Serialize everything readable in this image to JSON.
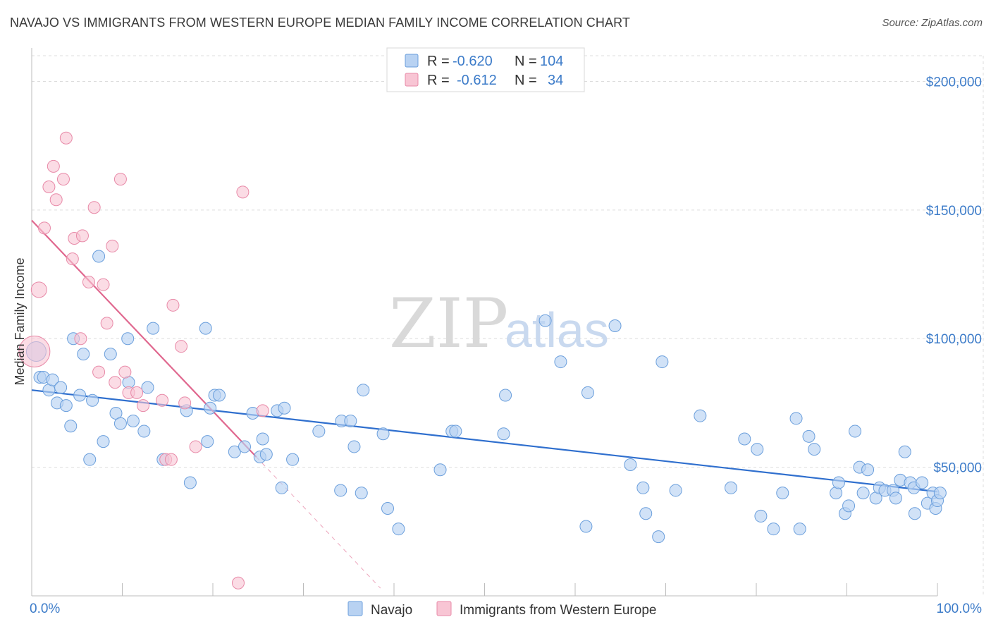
{
  "header": {
    "title": "NAVAJO VS IMMIGRANTS FROM WESTERN EUROPE MEDIAN FAMILY INCOME CORRELATION CHART",
    "source": "Source: ZipAtlas.com"
  },
  "watermark": {
    "zip": "ZIP",
    "atlas": "atlas"
  },
  "legend": {
    "navajo": {
      "r_label": "R =",
      "r_value": "-0.620",
      "n_label": "N =",
      "n_value": "104"
    },
    "immigrants": {
      "r_label": "R =",
      "r_value": "-0.612",
      "n_label": "N =",
      "n_value": "34"
    }
  },
  "colors": {
    "navajo_fill": "#b8d2f2",
    "navajo_stroke": "#6b9fdc",
    "navajo_line": "#2f6fce",
    "imm_fill": "#f8c5d4",
    "imm_stroke": "#e88aa8",
    "imm_line": "#e0688f",
    "axis_text": "#3d7cc9",
    "grid": "#dddddd"
  },
  "chart_data": {
    "type": "scatter",
    "title": "NAVAJO VS IMMIGRANTS FROM WESTERN EUROPE MEDIAN FAMILY INCOME CORRELATION CHART",
    "xlabel": "",
    "ylabel": "Median Family Income",
    "xlim": [
      0,
      100
    ],
    "ylim": [
      0,
      210000
    ],
    "x_tick_labels": [
      "0.0%",
      "100.0%"
    ],
    "y_ticks": [
      50000,
      100000,
      150000,
      200000
    ],
    "y_tick_labels": [
      "$50,000",
      "$100,000",
      "$150,000",
      "$200,000"
    ],
    "grid": true,
    "legend_position": "top-center",
    "series": [
      {
        "name": "Navajo",
        "r": -0.62,
        "n": 104,
        "trend": {
          "x": [
            0,
            100
          ],
          "y": [
            80000,
            40500
          ]
        },
        "points": [
          [
            0.5,
            95000
          ],
          [
            0.9,
            85000
          ],
          [
            1.3,
            85000
          ],
          [
            1.9,
            80000
          ],
          [
            2.3,
            84000
          ],
          [
            2.8,
            75000
          ],
          [
            3.2,
            81000
          ],
          [
            3.8,
            74000
          ],
          [
            4.3,
            66000
          ],
          [
            4.6,
            100000
          ],
          [
            5.3,
            78000
          ],
          [
            5.7,
            94000
          ],
          [
            6.4,
            53000
          ],
          [
            6.7,
            76000
          ],
          [
            7.4,
            132000
          ],
          [
            7.9,
            60000
          ],
          [
            8.7,
            94000
          ],
          [
            9.3,
            71000
          ],
          [
            9.8,
            67000
          ],
          [
            10.6,
            100000
          ],
          [
            10.7,
            83000
          ],
          [
            11.2,
            68000
          ],
          [
            12.4,
            64000
          ],
          [
            12.8,
            81000
          ],
          [
            13.4,
            104000
          ],
          [
            14.5,
            53000
          ],
          [
            17.1,
            72000
          ],
          [
            17.5,
            44000
          ],
          [
            19.2,
            104000
          ],
          [
            19.4,
            60000
          ],
          [
            19.7,
            73000
          ],
          [
            20.2,
            78000
          ],
          [
            20.7,
            78000
          ],
          [
            22.4,
            56000
          ],
          [
            23.5,
            58000
          ],
          [
            24.4,
            71000
          ],
          [
            25.2,
            54000
          ],
          [
            25.5,
            61000
          ],
          [
            25.9,
            55000
          ],
          [
            27.1,
            72000
          ],
          [
            27.6,
            42000
          ],
          [
            27.9,
            73000
          ],
          [
            28.8,
            53000
          ],
          [
            31.7,
            64000
          ],
          [
            34.1,
            41000
          ],
          [
            34.2,
            68000
          ],
          [
            35.2,
            68000
          ],
          [
            35.6,
            58000
          ],
          [
            36.4,
            40000
          ],
          [
            36.6,
            80000
          ],
          [
            38.8,
            63000
          ],
          [
            39.3,
            34000
          ],
          [
            40.5,
            26000
          ],
          [
            45.1,
            49000
          ],
          [
            46.4,
            64000
          ],
          [
            46.8,
            64000
          ],
          [
            52.1,
            63000
          ],
          [
            52.3,
            78000
          ],
          [
            56.7,
            107000
          ],
          [
            58.4,
            91000
          ],
          [
            61.2,
            27000
          ],
          [
            61.4,
            79000
          ],
          [
            64.4,
            105000
          ],
          [
            66.1,
            51000
          ],
          [
            67.5,
            42000
          ],
          [
            67.8,
            32000
          ],
          [
            69.2,
            23000
          ],
          [
            69.6,
            91000
          ],
          [
            71.1,
            41000
          ],
          [
            73.8,
            70000
          ],
          [
            77.2,
            42000
          ],
          [
            78.7,
            61000
          ],
          [
            80.1,
            57000
          ],
          [
            80.5,
            31000
          ],
          [
            81.9,
            26000
          ],
          [
            82.9,
            40000
          ],
          [
            84.4,
            69000
          ],
          [
            84.8,
            26000
          ],
          [
            85.8,
            62000
          ],
          [
            86.4,
            57000
          ],
          [
            88.8,
            40000
          ],
          [
            89.1,
            44000
          ],
          [
            89.8,
            32000
          ],
          [
            90.2,
            35000
          ],
          [
            90.9,
            64000
          ],
          [
            91.4,
            50000
          ],
          [
            91.8,
            40000
          ],
          [
            92.3,
            49000
          ],
          [
            93.2,
            38000
          ],
          [
            93.6,
            42000
          ],
          [
            94.2,
            41000
          ],
          [
            95.1,
            41000
          ],
          [
            95.4,
            38000
          ],
          [
            95.9,
            45000
          ],
          [
            96.4,
            56000
          ],
          [
            97.0,
            44000
          ],
          [
            97.4,
            42000
          ],
          [
            97.5,
            32000
          ],
          [
            98.3,
            44000
          ],
          [
            98.9,
            36000
          ],
          [
            99.5,
            40000
          ],
          [
            99.8,
            34000
          ],
          [
            100.0,
            37000
          ],
          [
            100.3,
            40000
          ]
        ]
      },
      {
        "name": "Immigrants from Western Europe",
        "r": -0.612,
        "n": 34,
        "trend": {
          "x": [
            0,
            24.8
          ],
          "y": [
            146000,
            54000
          ]
        },
        "trend_extension": {
          "x": [
            24.8,
            38.5
          ],
          "y": [
            54000,
            3000
          ]
        },
        "points": [
          [
            0.3,
            95000
          ],
          [
            0.8,
            119000
          ],
          [
            1.4,
            143000
          ],
          [
            1.9,
            159000
          ],
          [
            2.4,
            167000
          ],
          [
            2.7,
            154000
          ],
          [
            3.5,
            162000
          ],
          [
            3.8,
            178000
          ],
          [
            4.5,
            131000
          ],
          [
            4.7,
            139000
          ],
          [
            5.4,
            100000
          ],
          [
            5.6,
            140000
          ],
          [
            6.3,
            122000
          ],
          [
            6.9,
            151000
          ],
          [
            7.4,
            87000
          ],
          [
            7.9,
            121000
          ],
          [
            8.3,
            106000
          ],
          [
            8.9,
            136000
          ],
          [
            9.2,
            83000
          ],
          [
            9.8,
            162000
          ],
          [
            10.3,
            87000
          ],
          [
            10.7,
            79000
          ],
          [
            11.6,
            79000
          ],
          [
            12.3,
            74000
          ],
          [
            14.4,
            76000
          ],
          [
            14.8,
            53000
          ],
          [
            15.4,
            53000
          ],
          [
            15.6,
            113000
          ],
          [
            16.5,
            97000
          ],
          [
            16.9,
            75000
          ],
          [
            18.1,
            58000
          ],
          [
            22.8,
            5000
          ],
          [
            23.3,
            157000
          ],
          [
            25.5,
            72000
          ]
        ]
      }
    ]
  },
  "bottom_legend": {
    "navajo": "Navajo",
    "immigrants": "Immigrants from Western Europe"
  }
}
